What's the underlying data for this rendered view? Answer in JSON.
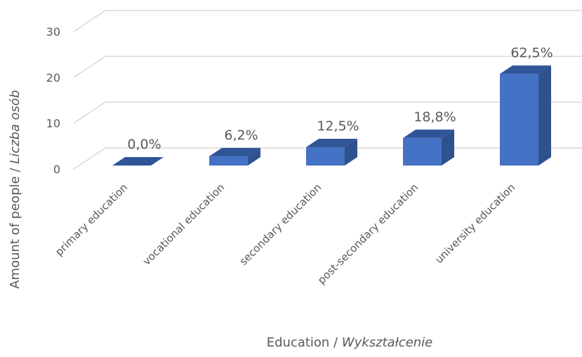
{
  "chart_data": {
    "type": "bar3d",
    "categories": [
      "primary education",
      "vocational education",
      "secondary education",
      "post-secondary education",
      "university education"
    ],
    "values": [
      0,
      2,
      4,
      6,
      20
    ],
    "value_labels": [
      "0,0%",
      "6,2%",
      "12,5%",
      "18,8%",
      "62,5%"
    ],
    "color": "#4472c4",
    "ylim": [
      0,
      30
    ],
    "yticks": [
      0,
      10,
      20,
      30
    ],
    "grid": true,
    "xlabel": [
      "Education  /  ",
      "Wykształcenie"
    ],
    "ylabel": [
      "Amount of people  /  ",
      "Liczba osób"
    ]
  }
}
